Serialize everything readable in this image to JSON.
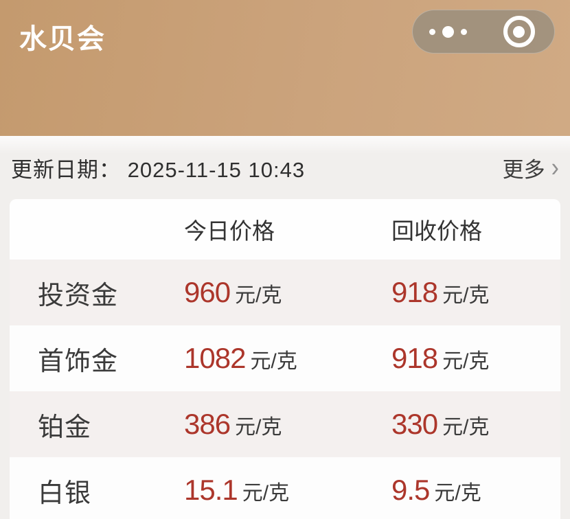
{
  "app": {
    "title": "水贝会",
    "capsule": {
      "more_icon": "three-dots",
      "home_icon": "circled-dot"
    },
    "colors": {
      "header_gradient_start": "#c49a6e",
      "header_gradient_end": "#d0aa84",
      "page_bg": "#f1efed",
      "price_red": "#ac362b",
      "row_alt_bg": "#f4f0ef"
    }
  },
  "update_bar": {
    "label": "更新日期：",
    "datetime": "2025-11-15 10:43",
    "more_label": "更多",
    "chevron": "›"
  },
  "price_table": {
    "columns": [
      "今日价格",
      "回收价格"
    ],
    "rows": [
      {
        "name": "投资金",
        "today": "960",
        "today_unit": "元/克",
        "recycle": "918",
        "recycle_unit": "元/克"
      },
      {
        "name": "首饰金",
        "today": "1082",
        "today_unit": "元/克",
        "recycle": "918",
        "recycle_unit": "元/克"
      },
      {
        "name": "铂金",
        "today": "386",
        "today_unit": "元/克",
        "recycle": "330",
        "recycle_unit": "元/克"
      },
      {
        "name": "白银",
        "today": "15.1",
        "today_unit": "元/克",
        "recycle": "9.5",
        "recycle_unit": "元/克"
      }
    ]
  }
}
